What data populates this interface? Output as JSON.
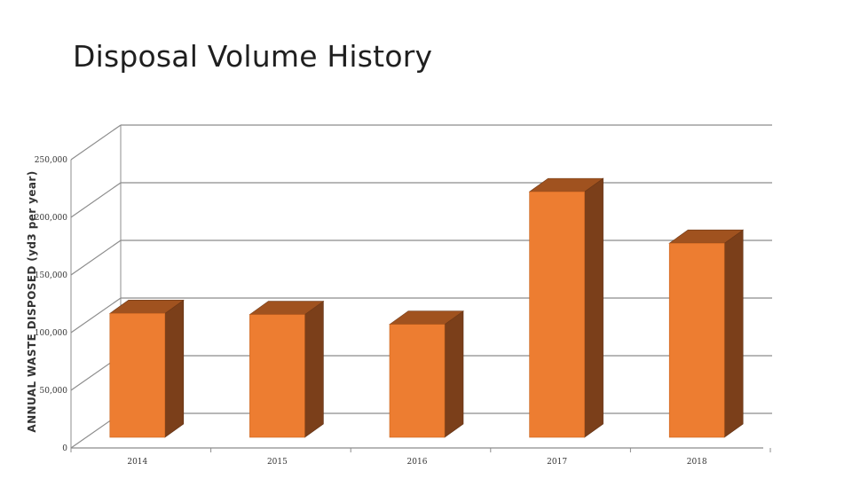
{
  "chart_data": {
    "type": "bar",
    "title": "Disposal Volume History",
    "xlabel": "",
    "ylabel": "ANNUAL WASTE DISPOSED (yd3 per year)",
    "categories": [
      "2014",
      "2015",
      "2016",
      "2017",
      "2018"
    ],
    "values": [
      113000,
      112000,
      103000,
      224000,
      177000
    ],
    "ylim": [
      0,
      250000
    ],
    "yticks": [
      "0",
      "50,000",
      "100,000",
      "150,000",
      "200,000",
      "250,000"
    ],
    "grid": true,
    "three_d": true,
    "colors": {
      "front": "#ED7D31",
      "side": "#7B3F1A",
      "top": "#A0521F",
      "grid": "#8C8C8C"
    }
  }
}
